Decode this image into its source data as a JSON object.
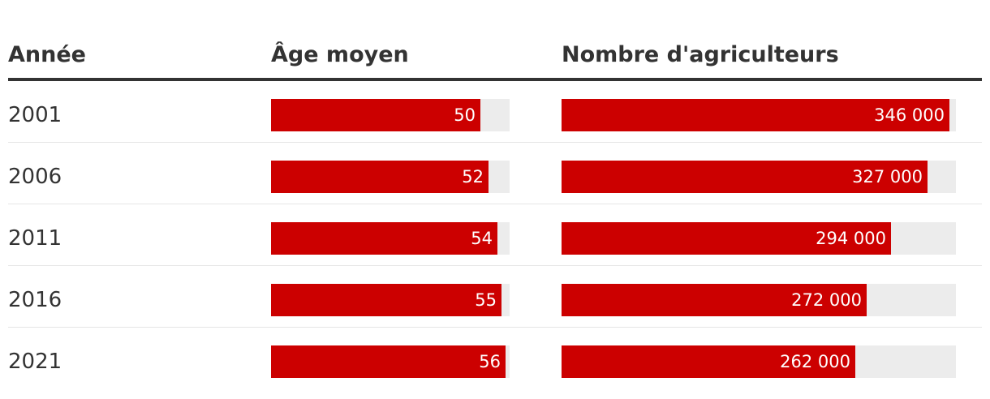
{
  "header": {
    "year_label": "Année",
    "age_label": "Âge moyen",
    "farmers_label": "Nombre d'agriculteurs"
  },
  "colors": {
    "bar": "#cc0000",
    "track": "#ececec",
    "text": "#333333"
  },
  "chart_data": {
    "type": "table",
    "columns": [
      "Année",
      "Âge moyen",
      "Nombre d'agriculteurs"
    ],
    "age_scale_max": 57,
    "farmers_scale_max": 352000,
    "rows": [
      {
        "year": "2001",
        "age": 50,
        "age_label": "50",
        "farmers": 346000,
        "farmers_label": "346 000"
      },
      {
        "year": "2006",
        "age": 52,
        "age_label": "52",
        "farmers": 327000,
        "farmers_label": "327 000"
      },
      {
        "year": "2011",
        "age": 54,
        "age_label": "54",
        "farmers": 294000,
        "farmers_label": "294 000"
      },
      {
        "year": "2016",
        "age": 55,
        "age_label": "55",
        "farmers": 272000,
        "farmers_label": "272 000"
      },
      {
        "year": "2021",
        "age": 56,
        "age_label": "56",
        "farmers": 262000,
        "farmers_label": "262 000"
      }
    ]
  }
}
